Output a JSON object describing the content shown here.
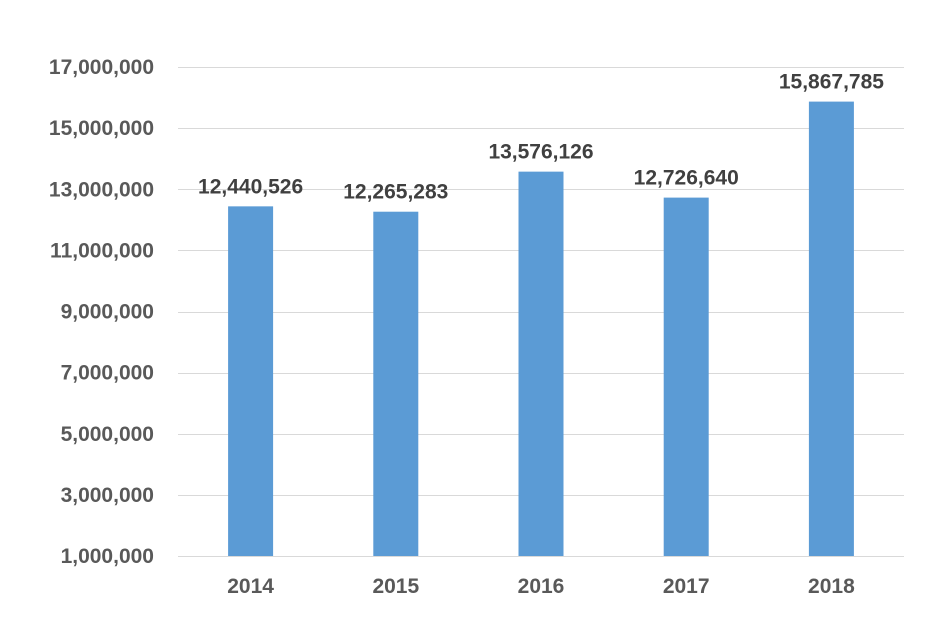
{
  "chart_data": {
    "type": "bar",
    "title": "",
    "xlabel": "",
    "ylabel": "",
    "categories": [
      "2014",
      "2015",
      "2016",
      "2017",
      "2018"
    ],
    "values": [
      12440526,
      12265283,
      13576126,
      12726640,
      15867785
    ],
    "value_labels": [
      "12,440,526",
      "12,265,283",
      "13,576,126",
      "12,726,640",
      "15,867,785"
    ],
    "ylim": [
      1000000,
      17000000
    ],
    "yticks": [
      1000000,
      3000000,
      5000000,
      7000000,
      9000000,
      11000000,
      13000000,
      15000000,
      17000000
    ],
    "ytick_labels": [
      "1,000,000",
      "3,000,000",
      "5,000,000",
      "7,000,000",
      "9,000,000",
      "11,000,000",
      "13,000,000",
      "15,000,000",
      "17,000,000"
    ],
    "grid": true,
    "legend": "none",
    "bar_color": "#5b9bd5",
    "grid_color": "#d9d9d9",
    "tick_label_color": "#595959",
    "data_label_color": "#404040"
  }
}
